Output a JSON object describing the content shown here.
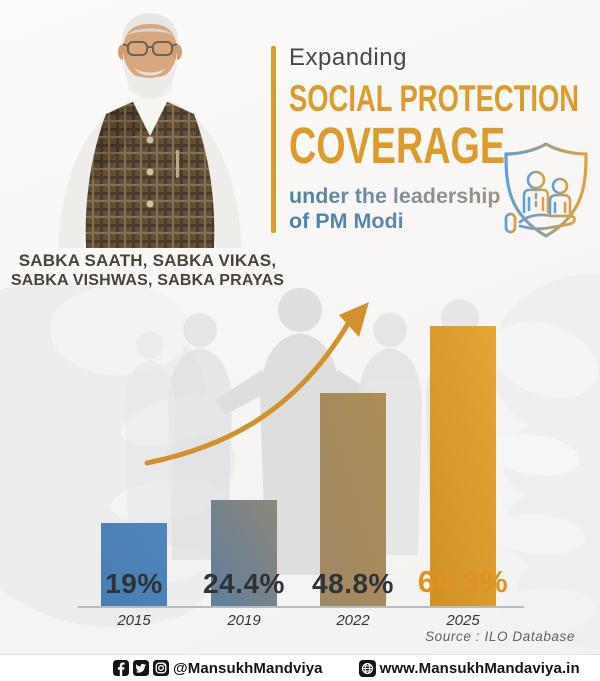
{
  "header": {
    "eyebrow": "Expanding",
    "title_line1": "SOCIAL PROTECTION",
    "title_line2": "COVERAGE",
    "subtitle_line1": "under the leadership",
    "subtitle_line2": "of PM Modi",
    "accent_color": "#dd9b2b"
  },
  "slogan": {
    "line1": "SABKA SAATH, SABKA VIKAS,",
    "line2": "SABKA VISHWAS, SABKA PRAYAS"
  },
  "chart_data": {
    "type": "bar",
    "title": "Expanding Social Protection Coverage under the leadership of PM Modi",
    "categories": [
      "2015",
      "2019",
      "2022",
      "2025"
    ],
    "values": [
      19,
      24.4,
      48.8,
      64.3
    ],
    "value_labels": [
      "19%",
      "24.4%",
      "48.8%",
      "64.3%"
    ],
    "ylim": [
      0,
      70
    ],
    "grid": false,
    "legend": false,
    "bar_gradients": [
      [
        "#4a7db2",
        "#4e85bc"
      ],
      [
        "#5f7e9c",
        "#8d887a"
      ],
      [
        "#9f8866",
        "#ad8d55"
      ],
      [
        "#cf9026",
        "#e5a637"
      ]
    ],
    "label_colors": [
      "#2f3237",
      "#2f3237",
      "#2f3237",
      "#df9222"
    ],
    "annotations": [
      "upward curved growth arrow"
    ],
    "source": "Source : ILO Database"
  },
  "footer": {
    "social_handle": "@MansukhMandviya",
    "website": "www.MansukhMandaviya.in",
    "icons": [
      "facebook-icon",
      "twitter-icon",
      "instagram-icon",
      "globe-icon"
    ]
  },
  "decorations": {
    "shield_icon": "shield with people protected by a hand",
    "portrait": "PM Narendra Modi",
    "background": "cupped hands and paper-chain people silhouettes"
  }
}
